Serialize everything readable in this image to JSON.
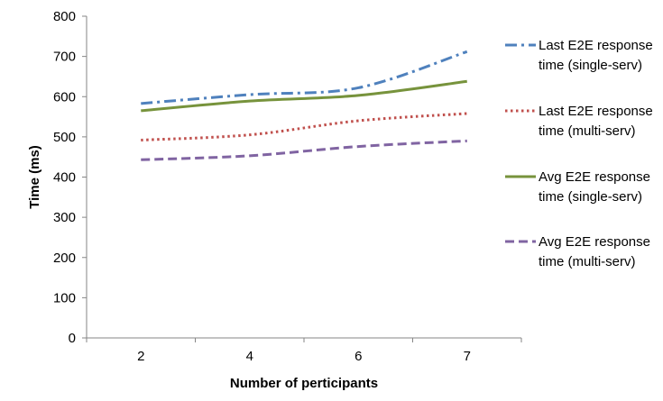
{
  "chart_data": {
    "type": "line",
    "title": "",
    "xlabel": "Number of perticipants",
    "ylabel": "Time (ms)",
    "categories": [
      "2",
      "4",
      "6",
      "7"
    ],
    "ylim": [
      0,
      800
    ],
    "yticks": [
      0,
      100,
      200,
      300,
      400,
      500,
      600,
      700,
      800
    ],
    "grid": false,
    "legend": "right",
    "series": [
      {
        "name": "Last E2E response time (single-serv)",
        "name_lines": [
          "Last E2E response",
          "time (single-serv)"
        ],
        "values": [
          583,
          605,
          622,
          712
        ],
        "color": "#4F81BD",
        "dash": "dash-dot"
      },
      {
        "name": "Last E2E response time (multi-serv)",
        "name_lines": [
          "Last E2E response",
          "time (multi-serv)"
        ],
        "values": [
          492,
          505,
          540,
          558
        ],
        "color": "#C0504D",
        "dash": "dot"
      },
      {
        "name": "Avg E2E response time (single-serv)",
        "name_lines": [
          "Avg E2E response",
          "time (single-serv)"
        ],
        "values": [
          565,
          589,
          603,
          638
        ],
        "color": "#77933C",
        "dash": "solid"
      },
      {
        "name": "Avg E2E response time (multi-serv)",
        "name_lines": [
          "Avg E2E response",
          "time (multi-serv)"
        ],
        "values": [
          443,
          453,
          476,
          490
        ],
        "color": "#8064A2",
        "dash": "dash"
      }
    ]
  }
}
